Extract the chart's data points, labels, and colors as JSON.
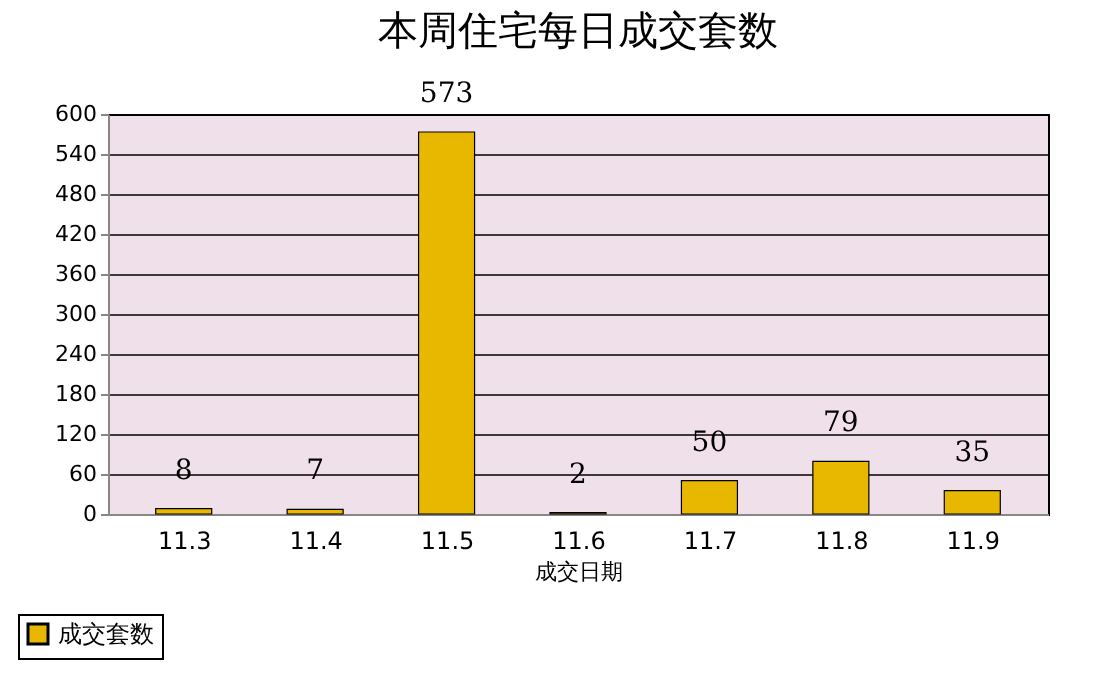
{
  "chart_data": {
    "type": "bar",
    "title": "本周住宅每日成交套数",
    "xlabel": "成交日期",
    "categories": [
      "11.3",
      "11.4",
      "11.5",
      "11.6",
      "11.7",
      "11.8",
      "11.9"
    ],
    "series": [
      {
        "name": "成交套数",
        "color": "#e8b800",
        "values": [
          8,
          7,
          573,
          2,
          50,
          79,
          35
        ]
      }
    ],
    "ylim": [
      0,
      600
    ],
    "yticks": [
      0,
      60,
      120,
      180,
      240,
      300,
      360,
      420,
      480,
      540,
      600
    ],
    "grid": "y",
    "data_labels": true,
    "legend": "bottom left"
  }
}
